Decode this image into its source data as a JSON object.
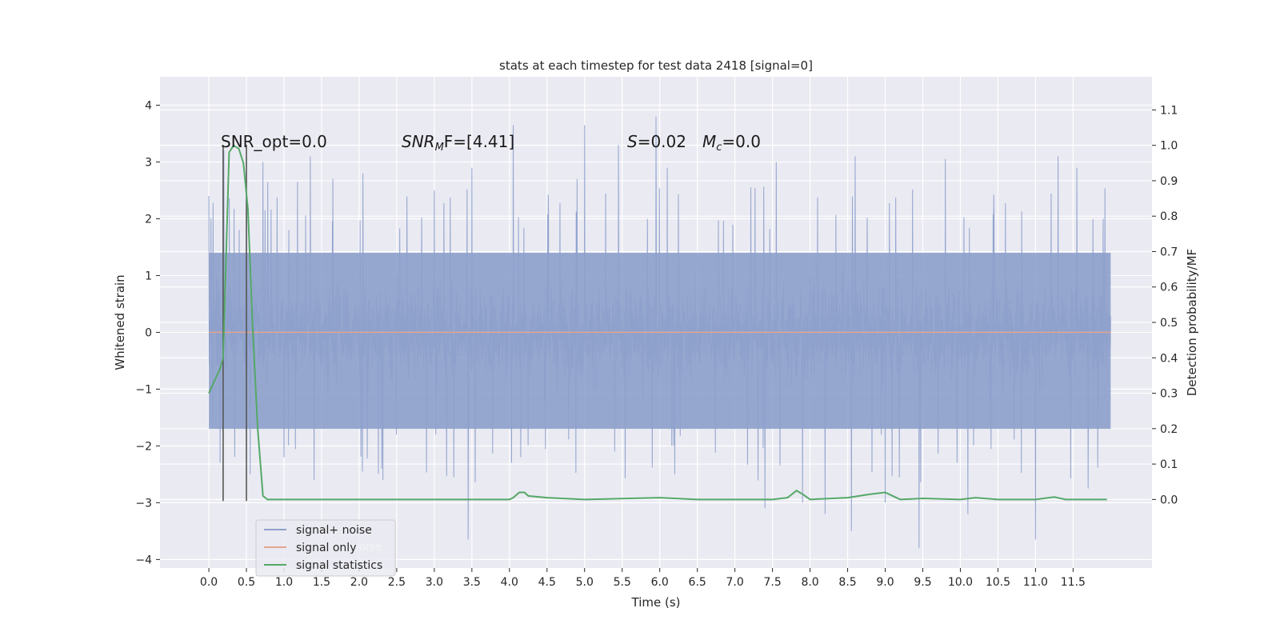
{
  "chart_data": {
    "type": "line",
    "title": "stats at each timestep for test data 2418 [signal=0]",
    "xlabel": "Time (s)",
    "ylabel": "Whitened strain",
    "y2label": "Detection probability/MF",
    "xlim": [
      -0.65,
      12.55
    ],
    "ylim": [
      -4.15,
      4.5
    ],
    "y2lim": [
      -0.1935,
      1.1935
    ],
    "xticks": [
      0.0,
      0.5,
      1.0,
      1.5,
      2.0,
      2.5,
      3.0,
      3.5,
      4.0,
      4.5,
      5.0,
      5.5,
      6.0,
      6.5,
      7.0,
      7.5,
      8.0,
      8.5,
      9.0,
      9.5,
      10.0,
      10.5,
      11.0,
      11.5
    ],
    "xtick_labels": [
      "0.0",
      "0.5",
      "1.0",
      "1.5",
      "2.0",
      "2.5",
      "3.0",
      "3.5",
      "4.0",
      "4.5",
      "5.0",
      "5.5",
      "6.0",
      "6.5",
      "7.0",
      "7.5",
      "8.0",
      "8.5",
      "9.0",
      "9.5",
      "10.0",
      "10.5",
      "11.0",
      "11.5"
    ],
    "yticks": [
      -4,
      -3,
      -2,
      -1,
      0,
      1,
      2,
      3,
      4
    ],
    "ytick_labels": [
      "−4",
      "−3",
      "−2",
      "−1",
      "0",
      "1",
      "2",
      "3",
      "4"
    ],
    "y2ticks": [
      0.0,
      0.1,
      0.2,
      0.3,
      0.4,
      0.5,
      0.6,
      0.7,
      0.8,
      0.9,
      1.0,
      1.1
    ],
    "y2tick_labels": [
      "0.0",
      "0.1",
      "0.2",
      "0.3",
      "0.4",
      "0.5",
      "0.6",
      "0.7",
      "0.8",
      "0.9",
      "1.0",
      "1.1"
    ],
    "grid": true,
    "legend_position": "lower-left",
    "legend": [
      "signal+ noise",
      "signal only",
      "signal statistics"
    ],
    "legend_ghost_text": "noise",
    "annotations": {
      "snr_opt": "SNR_opt=0.0",
      "snr_mf_symbol": "SNR",
      "snr_mf_sub": "M",
      "snr_mf_rest": "F=[4.41]",
      "s_symbol": "S",
      "s_rest": "=0.02",
      "mc_symbol": "M",
      "mc_sub": "c",
      "mc_rest": "=0.0"
    },
    "vertical_markers_x": [
      0.19,
      0.5
    ],
    "vertical_markers_yrange": [
      -2.97,
      3.3
    ],
    "noise_series": {
      "name": "signal+ noise",
      "color": "#8da0cb",
      "x_start": 0.0,
      "x_end": 12.0,
      "sample_rate_per_s": 250,
      "dense_band": [
        -1.7,
        1.4
      ],
      "peaks": [
        {
          "x": 0.0,
          "y": 2.4
        },
        {
          "x": 0.05,
          "y": -1.5
        },
        {
          "x": 0.15,
          "y": -2.3
        },
        {
          "x": 0.2,
          "y": 3.2
        },
        {
          "x": 0.5,
          "y": 2.6
        },
        {
          "x": 0.55,
          "y": -2.5
        },
        {
          "x": 0.72,
          "y": 3.0
        },
        {
          "x": 1.0,
          "y": -2.2
        },
        {
          "x": 1.35,
          "y": 3.1
        },
        {
          "x": 1.4,
          "y": -2.6
        },
        {
          "x": 1.65,
          "y": 2.7
        },
        {
          "x": 2.05,
          "y": 2.8
        },
        {
          "x": 2.3,
          "y": -2.4
        },
        {
          "x": 3.0,
          "y": 2.5
        },
        {
          "x": 3.45,
          "y": -3.65
        },
        {
          "x": 3.5,
          "y": 2.9
        },
        {
          "x": 4.05,
          "y": 3.65
        },
        {
          "x": 4.15,
          "y": -2.2
        },
        {
          "x": 4.9,
          "y": 2.7
        },
        {
          "x": 5.0,
          "y": 3.65
        },
        {
          "x": 5.4,
          "y": -2.1
        },
        {
          "x": 5.45,
          "y": 3.3
        },
        {
          "x": 5.95,
          "y": 3.8
        },
        {
          "x": 5.98,
          "y": -0.8
        },
        {
          "x": 6.1,
          "y": 2.9
        },
        {
          "x": 6.2,
          "y": -2.5
        },
        {
          "x": 7.4,
          "y": -3.1
        },
        {
          "x": 7.55,
          "y": 3.0
        },
        {
          "x": 7.9,
          "y": -3.0
        },
        {
          "x": 8.2,
          "y": -3.2
        },
        {
          "x": 8.55,
          "y": -3.5
        },
        {
          "x": 8.6,
          "y": 3.1
        },
        {
          "x": 9.0,
          "y": -3.0
        },
        {
          "x": 9.45,
          "y": 4.1
        },
        {
          "x": 9.45,
          "y": -3.8
        },
        {
          "x": 9.8,
          "y": 3.05
        },
        {
          "x": 10.1,
          "y": -3.2
        },
        {
          "x": 11.0,
          "y": -3.65
        },
        {
          "x": 11.3,
          "y": 3.1
        },
        {
          "x": 11.55,
          "y": 2.9
        },
        {
          "x": 11.7,
          "y": -2.75
        },
        {
          "x": 11.9,
          "y": 2.0
        }
      ]
    },
    "signal_only_series": {
      "name": "signal only",
      "color": "#e4a58f",
      "x": [
        0.0,
        12.0
      ],
      "y": [
        0.0,
        0.0
      ]
    },
    "statistics_series": {
      "name": "signal statistics",
      "axis": "right",
      "color": "#55a868",
      "x": [
        0.0,
        0.15,
        0.19,
        0.27,
        0.33,
        0.4,
        0.46,
        0.52,
        0.58,
        0.65,
        0.72,
        0.78,
        1.0,
        2.0,
        3.0,
        3.5,
        4.0,
        4.05,
        4.13,
        4.2,
        4.25,
        4.5,
        5.0,
        6.0,
        6.5,
        7.0,
        7.5,
        7.7,
        7.82,
        7.9,
        8.0,
        8.5,
        8.8,
        9.0,
        9.1,
        9.2,
        9.5,
        10.0,
        10.2,
        10.5,
        11.0,
        11.25,
        11.4,
        11.95
      ],
      "y": [
        0.3,
        0.37,
        0.4,
        0.98,
        1.0,
        0.99,
        0.95,
        0.82,
        0.5,
        0.2,
        0.01,
        0.0,
        0.0,
        0.0,
        0.0,
        0.0,
        0.0,
        0.005,
        0.02,
        0.02,
        0.01,
        0.005,
        0.0,
        0.005,
        0.0,
        0.0,
        0.0,
        0.005,
        0.025,
        0.015,
        0.0,
        0.005,
        0.015,
        0.02,
        0.01,
        0.0,
        0.003,
        0.0,
        0.005,
        0.0,
        0.0,
        0.007,
        0.0,
        0.0
      ]
    }
  }
}
